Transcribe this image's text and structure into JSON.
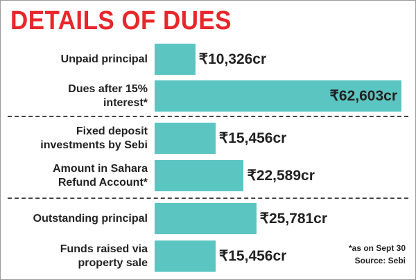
{
  "chart_data": {
    "type": "bar",
    "orientation": "horizontal",
    "title": "DETAILS OF DUES",
    "categories": [
      "Unpaid principal",
      "Dues after 15% interest*",
      "Fixed deposit investments by Sebi",
      "Amount in Sahara Refund Account*",
      "Outstanding principal",
      "Funds raised via property sale"
    ],
    "values": [
      10326,
      62603,
      15456,
      22589,
      25781,
      15456
    ],
    "value_labels": [
      "₹10,326cr",
      "₹62,603cr",
      "₹15,456cr",
      "₹22,589cr",
      "₹25,781cr",
      "₹15,456cr"
    ],
    "color": "#5bc5c2",
    "notes": [
      "*as on Sept 30",
      "Source: Sebi"
    ]
  }
}
